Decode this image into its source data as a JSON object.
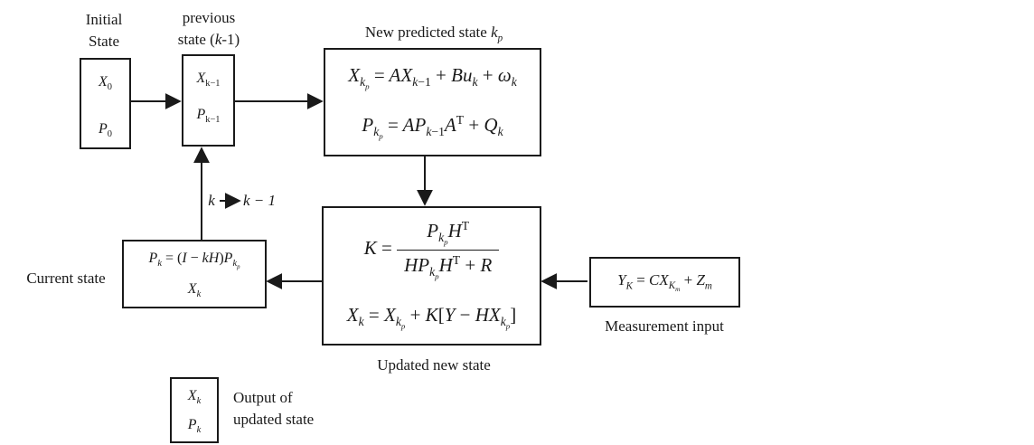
{
  "labels": {
    "initial_line1": "Initial",
    "initial_line2": "State",
    "previous_line1": "previous",
    "previous_line2": "state (k-1)",
    "predicted_title": "New predicted state k",
    "predicted_title_sub": "p",
    "current_state": "Current state",
    "updated_state": "Updated new state",
    "measurement": "Measurement  input",
    "output_line1": "Output of",
    "output_line2": "updated state",
    "loop_from": "k",
    "loop_to": "k − 1"
  },
  "boxes": {
    "initial": {
      "x": "X",
      "x_sub": "0",
      "p": "P",
      "p_sub": "0"
    },
    "previous": {
      "x": "X",
      "x_sub": "k−1",
      "p": "P",
      "p_sub": "k−1"
    },
    "output": {
      "x": "X",
      "x_sub": "k",
      "p": "P",
      "p_sub": "k"
    }
  },
  "colors": {
    "stroke": "#1a1a1a",
    "background": "#ffffff"
  }
}
